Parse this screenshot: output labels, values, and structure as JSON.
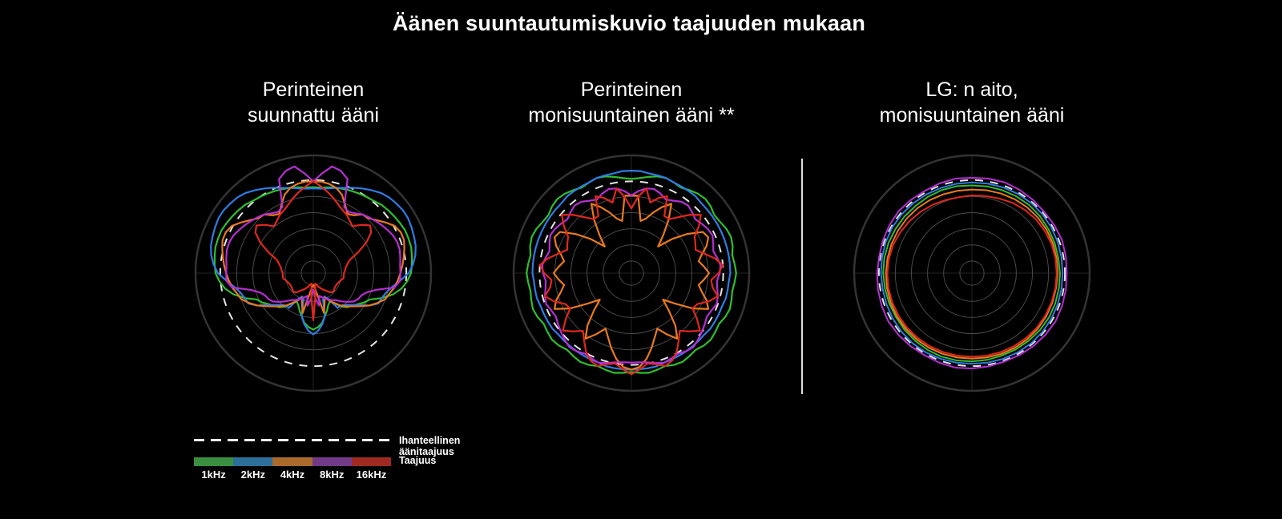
{
  "title": "Äänen suuntautumiskuvio taajuuden mukaan",
  "colors": {
    "background": "#000000",
    "text": "#ffffff",
    "grid_ring": "#4a4a4a",
    "grid_outer": "#333333",
    "crosshair": "#242424",
    "ideal_dash": "#e6e6e6",
    "separator": "#e0e0e0"
  },
  "legend": {
    "ideal_label": "Ihanteellinen äänitaajuus",
    "frequency_label": "Taajuus",
    "frequencies": [
      {
        "label": "1kHz",
        "color": "#3c8f40"
      },
      {
        "label": "2kHz",
        "color": "#2d6f99"
      },
      {
        "label": "4kHz",
        "color": "#a96a2c"
      },
      {
        "label": "8kHz",
        "color": "#713b87"
      },
      {
        "label": "16kHz",
        "color": "#9e2a22"
      }
    ]
  },
  "chart_data": [
    {
      "type": "polar-line",
      "title_line1": "Perinteinen",
      "title_line2": "suunnattu ääni",
      "radial_unit": "fraction of outer circle radius",
      "angle_convention": "degrees clockwise from top, equal steps",
      "symmetric": true,
      "angle_step_deg": 5,
      "outer_radius_px": 147,
      "grid_rings": [
        0.103,
        0.24,
        0.377,
        0.514,
        0.651
      ],
      "ideal_radius": 0.79,
      "stroke_width": 2.2,
      "series": [
        {
          "name": "1kHz",
          "color": "#2fbe2f",
          "r": [
            0.73,
            0.73,
            0.74,
            0.75,
            0.76,
            0.77,
            0.78,
            0.79,
            0.8,
            0.82,
            0.83,
            0.84,
            0.85,
            0.86,
            0.86,
            0.86,
            0.85,
            0.84,
            0.83,
            0.8,
            0.76,
            0.7,
            0.62,
            0.53,
            0.5,
            0.46,
            0.43,
            0.41,
            0.37,
            0.31,
            0.28,
            0.3,
            0.34,
            0.38,
            0.43,
            0.46,
            0.48
          ]
        },
        {
          "name": "2kHz",
          "color": "#2e7ce4",
          "r": [
            0.72,
            0.72,
            0.73,
            0.75,
            0.77,
            0.8,
            0.83,
            0.86,
            0.89,
            0.91,
            0.92,
            0.93,
            0.93,
            0.92,
            0.91,
            0.9,
            0.88,
            0.85,
            0.81,
            0.74,
            0.68,
            0.64,
            0.62,
            0.61,
            0.55,
            0.47,
            0.42,
            0.38,
            0.36,
            0.36,
            0.25,
            0.22,
            0.24,
            0.38,
            0.44,
            0.49,
            0.52
          ]
        },
        {
          "name": "4kHz",
          "color": "#e87a1e",
          "r": [
            0.78,
            0.78,
            0.77,
            0.75,
            0.71,
            0.64,
            0.58,
            0.6,
            0.65,
            0.66,
            0.7,
            0.75,
            0.8,
            0.82,
            0.82,
            0.8,
            0.78,
            0.76,
            0.74,
            0.72,
            0.7,
            0.67,
            0.65,
            0.6,
            0.55,
            0.49,
            0.44,
            0.4,
            0.36,
            0.31,
            0.27,
            0.23,
            0.28,
            0.35,
            0.18,
            0.12,
            0.1
          ]
        },
        {
          "name": "8kHz",
          "color": "#b62fd2",
          "r": [
            0.78,
            0.85,
            0.92,
            0.9,
            0.85,
            0.62,
            0.6,
            0.62,
            0.65,
            0.67,
            0.69,
            0.71,
            0.73,
            0.75,
            0.76,
            0.76,
            0.75,
            0.74,
            0.74,
            0.74,
            0.7,
            0.55,
            0.48,
            0.45,
            0.44,
            0.42,
            0.38,
            0.34,
            0.3,
            0.28,
            0.26,
            0.24,
            0.22,
            0.2,
            0.28,
            0.22,
            0.14
          ]
        },
        {
          "name": "16kHz",
          "color": "#e0281e",
          "r": [
            0.78,
            0.74,
            0.7,
            0.66,
            0.62,
            0.59,
            0.57,
            0.54,
            0.52,
            0.58,
            0.63,
            0.6,
            0.52,
            0.42,
            0.33,
            0.3,
            0.28,
            0.27,
            0.26,
            0.26,
            0.26,
            0.24,
            0.23,
            0.22,
            0.22,
            0.22,
            0.23,
            0.23,
            0.21,
            0.18,
            0.16,
            0.14,
            0.12,
            0.1,
            0.09,
            0.2,
            0.4
          ]
        }
      ]
    },
    {
      "type": "polar-line",
      "title_line1": "Perinteinen",
      "title_line2": "monisuuntainen ääni **",
      "radial_unit": "fraction of outer circle radius",
      "angle_convention": "degrees clockwise from top, equal steps",
      "symmetric": true,
      "angle_step_deg": 5,
      "outer_radius_px": 147,
      "grid_rings": [
        0.103,
        0.24,
        0.377,
        0.514,
        0.651
      ],
      "ideal_radius": 0.78,
      "stroke_width": 2.2,
      "series": [
        {
          "name": "1kHz",
          "color": "#2fbe2f",
          "r": [
            0.8,
            0.81,
            0.83,
            0.85,
            0.86,
            0.85,
            0.84,
            0.86,
            0.88,
            0.89,
            0.88,
            0.86,
            0.87,
            0.89,
            0.9,
            0.89,
            0.87,
            0.88,
            0.89,
            0.88,
            0.87,
            0.88,
            0.89,
            0.88,
            0.86,
            0.87,
            0.88,
            0.87,
            0.85,
            0.86,
            0.87,
            0.86,
            0.84,
            0.85,
            0.86,
            0.85,
            0.84
          ]
        },
        {
          "name": "2kHz",
          "color": "#2e7ce4",
          "r": [
            0.87,
            0.87,
            0.86,
            0.86,
            0.86,
            0.85,
            0.85,
            0.85,
            0.85,
            0.84,
            0.84,
            0.84,
            0.84,
            0.84,
            0.84,
            0.84,
            0.84,
            0.84,
            0.84,
            0.83,
            0.83,
            0.83,
            0.82,
            0.82,
            0.82,
            0.82,
            0.81,
            0.81,
            0.81,
            0.81,
            0.81,
            0.81,
            0.81,
            0.82,
            0.82,
            0.82,
            0.82
          ]
        },
        {
          "name": "4kHz",
          "color": "#e87a1e",
          "r": [
            0.66,
            0.66,
            0.45,
            0.48,
            0.55,
            0.62,
            0.68,
            0.55,
            0.42,
            0.32,
            0.45,
            0.58,
            0.7,
            0.72,
            0.68,
            0.62,
            0.58,
            0.62,
            0.66,
            0.62,
            0.58,
            0.62,
            0.68,
            0.72,
            0.6,
            0.45,
            0.35,
            0.45,
            0.58,
            0.68,
            0.6,
            0.52,
            0.58,
            0.66,
            0.74,
            0.8,
            0.82
          ]
        },
        {
          "name": "8kHz",
          "color": "#b62fd2",
          "r": [
            0.66,
            0.7,
            0.73,
            0.74,
            0.72,
            0.69,
            0.71,
            0.74,
            0.75,
            0.73,
            0.71,
            0.73,
            0.75,
            0.76,
            0.74,
            0.72,
            0.74,
            0.76,
            0.75,
            0.73,
            0.74,
            0.76,
            0.77,
            0.75,
            0.74,
            0.76,
            0.78,
            0.8,
            0.82,
            0.81,
            0.79,
            0.8,
            0.81,
            0.79,
            0.77,
            0.76,
            0.76
          ]
        },
        {
          "name": "16kHz",
          "color": "#e0281e",
          "r": [
            0.55,
            0.65,
            0.73,
            0.62,
            0.68,
            0.72,
            0.56,
            0.56,
            0.62,
            0.7,
            0.77,
            0.7,
            0.62,
            0.6,
            0.58,
            0.64,
            0.72,
            0.78,
            0.74,
            0.68,
            0.7,
            0.76,
            0.7,
            0.62,
            0.6,
            0.68,
            0.76,
            0.7,
            0.64,
            0.7,
            0.77,
            0.82,
            0.84,
            0.8,
            0.78,
            0.82,
            0.86
          ]
        }
      ]
    },
    {
      "type": "polar-line",
      "title_line1": "LG: n aito,",
      "title_line2": "monisuuntainen ääni",
      "radial_unit": "fraction of outer circle radius",
      "angle_convention": "degrees clockwise from top, equal steps",
      "symmetric": false,
      "angle_step_deg": 10,
      "outer_radius_px": 147,
      "grid_rings": [
        0.103,
        0.24,
        0.377,
        0.514,
        0.651
      ],
      "ideal_radius": 0.79,
      "stroke_width": 2,
      "series": [
        {
          "name": "1kHz",
          "color": "#2fbe2f",
          "r": [
            0.745,
            0.748,
            0.75,
            0.753,
            0.755,
            0.753,
            0.75,
            0.748,
            0.745,
            0.748,
            0.75,
            0.753,
            0.755,
            0.753,
            0.75,
            0.748,
            0.745,
            0.748,
            0.75,
            0.753,
            0.755,
            0.753,
            0.75,
            0.748,
            0.745,
            0.748,
            0.75,
            0.753,
            0.755,
            0.753,
            0.75,
            0.748,
            0.745,
            0.748,
            0.75,
            0.75
          ]
        },
        {
          "name": "2kHz",
          "color": "#2e7ce4",
          "r": [
            0.77,
            0.772,
            0.775,
            0.778,
            0.78,
            0.78,
            0.778,
            0.775,
            0.772,
            0.77,
            0.772,
            0.775,
            0.778,
            0.78,
            0.78,
            0.778,
            0.775,
            0.772,
            0.77,
            0.772,
            0.775,
            0.778,
            0.78,
            0.778,
            0.775,
            0.772,
            0.77,
            0.772,
            0.775,
            0.778,
            0.78,
            0.778,
            0.775,
            0.772,
            0.77,
            0.77
          ]
        },
        {
          "name": "4kHz",
          "color": "#e87a1e",
          "r": [
            0.71,
            0.715,
            0.72,
            0.725,
            0.73,
            0.732,
            0.733,
            0.732,
            0.73,
            0.728,
            0.726,
            0.728,
            0.73,
            0.732,
            0.733,
            0.732,
            0.73,
            0.728,
            0.726,
            0.728,
            0.73,
            0.732,
            0.733,
            0.734,
            0.735,
            0.734,
            0.732,
            0.73,
            0.728,
            0.726,
            0.724,
            0.722,
            0.72,
            0.716,
            0.712,
            0.71
          ]
        },
        {
          "name": "8kHz",
          "color": "#b62fd2",
          "r": [
            0.81,
            0.815,
            0.82,
            0.815,
            0.81,
            0.805,
            0.81,
            0.815,
            0.81,
            0.805,
            0.81,
            0.815,
            0.82,
            0.815,
            0.81,
            0.805,
            0.8,
            0.805,
            0.81,
            0.815,
            0.81,
            0.805,
            0.81,
            0.815,
            0.82,
            0.815,
            0.81,
            0.805,
            0.8,
            0.805,
            0.81,
            0.815,
            0.81,
            0.805,
            0.81,
            0.815
          ]
        },
        {
          "name": "16kHz",
          "color": "#e0281e",
          "r": [
            0.66,
            0.665,
            0.675,
            0.69,
            0.7,
            0.71,
            0.715,
            0.72,
            0.72,
            0.72,
            0.72,
            0.72,
            0.72,
            0.72,
            0.718,
            0.716,
            0.714,
            0.712,
            0.71,
            0.712,
            0.714,
            0.716,
            0.718,
            0.72,
            0.72,
            0.72,
            0.72,
            0.718,
            0.715,
            0.71,
            0.7,
            0.69,
            0.68,
            0.67,
            0.66,
            0.655
          ]
        }
      ]
    }
  ]
}
